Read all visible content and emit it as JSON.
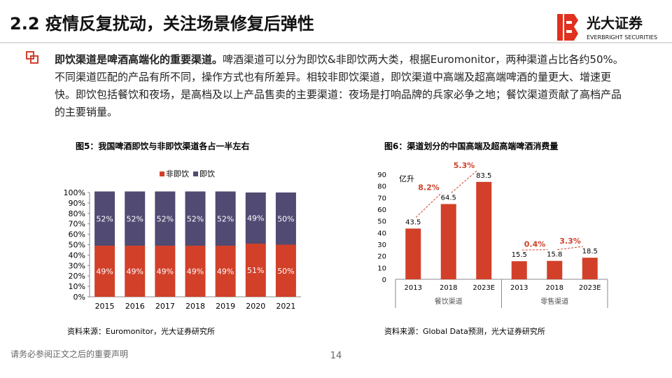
{
  "header": {
    "title": "2.2 疫情反复扰动，关注场景修复后弹性",
    "logo_cn": "光大证券",
    "logo_en": "EVERBRIGHT SECURITIES"
  },
  "body": {
    "lead": "即饮渠道是啤酒高端化的重要渠道。",
    "text": "啤酒渠道可以分为即饮&非即饮两大类，根据Euromonitor，两种渠道占比各约50%。不同渠道匹配的产品有所不同，操作方式也有所差异。相较非即饮渠道，即饮渠道中高端及超高端啤酒的量更大、增速更快。即饮包括餐饮和夜场，是高档及以上产品售卖的主要渠道：夜场是打响品牌的兵家必争之地；餐饮渠道贡献了高档产品的主要销量。"
  },
  "chart_data": [
    {
      "type": "stacked_bar",
      "title": "图5：我国啤酒即饮与非即饮渠道各占一半左右",
      "source": "资料来源：Euromonitor，光大证券研究所",
      "categories": [
        "2015",
        "2016",
        "2017",
        "2018",
        "2019",
        "2020",
        "2021"
      ],
      "series": [
        {
          "name": "非即饮",
          "color": "#d2402a",
          "values": [
            49,
            49,
            49,
            49,
            49,
            51,
            50
          ],
          "value_labels": [
            "49%",
            "49%",
            "49%",
            "49%",
            "49%",
            "51%",
            "50%"
          ]
        },
        {
          "name": "即饮",
          "color": "#514a72",
          "values": [
            52,
            52,
            52,
            52,
            52,
            49,
            50
          ],
          "value_labels": [
            "52%",
            "52%",
            "52%",
            "52%",
            "52%",
            "49%",
            "50%"
          ]
        }
      ],
      "ylim": [
        0,
        100
      ],
      "yticks": [
        {
          "value": 0,
          "label": "0%"
        },
        {
          "value": 10,
          "label": "10%"
        },
        {
          "value": 20,
          "label": "20%"
        },
        {
          "value": 30,
          "label": "30%"
        },
        {
          "value": 40,
          "label": "40%"
        },
        {
          "value": 50,
          "label": "50%"
        },
        {
          "value": 60,
          "label": "60%"
        },
        {
          "value": 70,
          "label": "70%"
        },
        {
          "value": 80,
          "label": "80%"
        },
        {
          "value": 90,
          "label": "90%"
        },
        {
          "value": 100,
          "label": "100%"
        }
      ],
      "legend": "top"
    },
    {
      "type": "bar",
      "title": "图6：渠道划分的中国高端及超高端啤酒消费量",
      "source": "资料来源：Global Data预测，光大证券研究所",
      "y_label": "亿升",
      "categories": [
        "2013",
        "2018",
        "2023E",
        "2013",
        "2018",
        "2023E"
      ],
      "groups": [
        "餐饮渠道",
        "零售渠道"
      ],
      "values": [
        43.5,
        64.5,
        83.5,
        15.5,
        15.8,
        18.5
      ],
      "color": "#d2402a",
      "growth_labels": [
        "8.2%",
        "5.3%",
        "0.4%",
        "3.3%"
      ],
      "ylim": [
        0,
        90
      ],
      "yticks": [
        0,
        10,
        20,
        30,
        40,
        50,
        60,
        70,
        80,
        90
      ]
    }
  ],
  "footer": {
    "disclaimer": "请务必参阅正文之后的重要声明",
    "page": 14
  }
}
